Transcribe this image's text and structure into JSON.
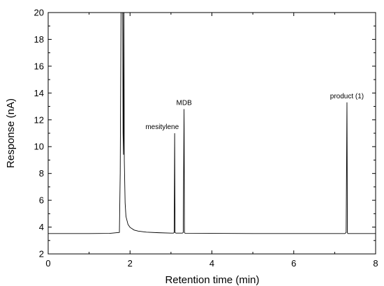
{
  "chart_data": {
    "type": "line",
    "title": "",
    "xlabel": "Retention time (min)",
    "ylabel": "Response (nA)",
    "xlim": [
      0,
      8
    ],
    "ylim": [
      2,
      20
    ],
    "x_ticks": [
      "0",
      "2",
      "4",
      "6",
      "8"
    ],
    "y_ticks": [
      "2",
      "4",
      "6",
      "8",
      "10",
      "12",
      "14",
      "16",
      "18",
      "20"
    ],
    "grid": false,
    "legend": "none",
    "line_color": "#000000",
    "series": [
      {
        "x": [
          0.0,
          0.5,
          1.0,
          1.5,
          1.74,
          1.76,
          1.78,
          1.8,
          1.82,
          1.83,
          1.84,
          1.845,
          1.85,
          1.86,
          1.88,
          1.9,
          1.95,
          2.0,
          2.1,
          2.2,
          2.4,
          2.7,
          3.0,
          3.06,
          3.08,
          3.09,
          3.1,
          3.12,
          3.28,
          3.3,
          3.32,
          3.33,
          3.34,
          3.36,
          4.0,
          5.0,
          6.0,
          7.0,
          7.25,
          7.28,
          7.3,
          7.31,
          7.32,
          7.34,
          7.6,
          8.0
        ],
        "y": [
          3.52,
          3.52,
          3.52,
          3.53,
          3.6,
          8.0,
          20.0,
          20.0,
          20.0,
          11.0,
          9.4,
          20.0,
          20.0,
          9.0,
          5.8,
          4.8,
          4.2,
          3.98,
          3.78,
          3.7,
          3.62,
          3.58,
          3.55,
          3.55,
          3.6,
          11.0,
          3.6,
          3.55,
          3.55,
          3.6,
          12.8,
          3.6,
          3.55,
          3.54,
          3.53,
          3.52,
          3.52,
          3.52,
          3.52,
          3.6,
          13.3,
          3.6,
          3.52,
          3.52,
          3.52,
          3.52
        ]
      }
    ],
    "annotations": [
      {
        "text": "mesitylene",
        "x": 3.09,
        "y": 11.0
      },
      {
        "text": "MDB",
        "x": 3.32,
        "y": 12.8
      },
      {
        "text": "product (1)",
        "x": 7.3,
        "y": 13.3
      }
    ]
  }
}
